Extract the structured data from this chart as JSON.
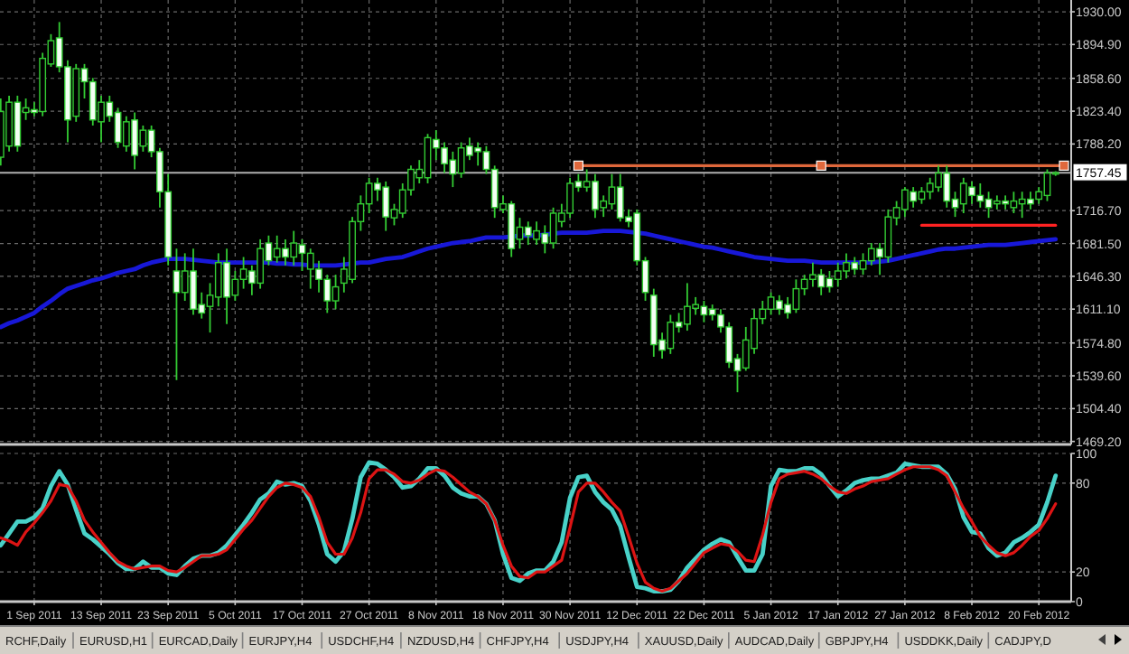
{
  "chart_data": [
    {
      "type": "candlestick",
      "color": "#33cc33",
      "categories": [
        null,
        null,
        null,
        null,
        null,
        null,
        null,
        null,
        null,
        null,
        null,
        null,
        null,
        null,
        null,
        null,
        null,
        null,
        null,
        null,
        null,
        null,
        null,
        null,
        null,
        null,
        null,
        null,
        null,
        null,
        null,
        null,
        null,
        null,
        null,
        null,
        null,
        null,
        null,
        null,
        null,
        null,
        null,
        null,
        null,
        null,
        null,
        null,
        null,
        null,
        null,
        null,
        null,
        null,
        null,
        null,
        null,
        null,
        null,
        null,
        null,
        null,
        null,
        null,
        null,
        null,
        null,
        null,
        null,
        null,
        null,
        null,
        null,
        null,
        null,
        null,
        null,
        null,
        null,
        null,
        null,
        null,
        null,
        null,
        null,
        null,
        null,
        null,
        null,
        null,
        null,
        null,
        null,
        null,
        null,
        null,
        null,
        null,
        null,
        null,
        null,
        null,
        null,
        null,
        null,
        null,
        null,
        null,
        null,
        null,
        null,
        null,
        null,
        null,
        null,
        null,
        null,
        null,
        null,
        null,
        null,
        null,
        null,
        null,
        null,
        null,
        null,
        null
      ],
      "ohlc": [
        [
          1774,
          1837,
          1765,
          1823
        ],
        [
          1786,
          1840,
          1780,
          1833
        ],
        [
          1833,
          1840,
          1780,
          1786
        ],
        [
          1822,
          1837,
          1814,
          1827
        ],
        [
          1825,
          1833,
          1818,
          1822
        ],
        [
          1823,
          1886,
          1818,
          1880
        ],
        [
          1874,
          1906,
          1871,
          1899
        ],
        [
          1902,
          1919,
          1865,
          1871
        ],
        [
          1871,
          1878,
          1790,
          1814
        ],
        [
          1818,
          1874,
          1812,
          1869
        ],
        [
          1869,
          1874,
          1837,
          1855
        ],
        [
          1855,
          1859,
          1808,
          1814
        ],
        [
          1812,
          1840,
          1790,
          1833
        ],
        [
          1833,
          1840,
          1812,
          1818
        ],
        [
          1822,
          1827,
          1784,
          1790
        ],
        [
          1786,
          1818,
          1780,
          1812
        ],
        [
          1814,
          1822,
          1761,
          1776
        ],
        [
          1786,
          1808,
          1780,
          1803
        ],
        [
          1803,
          1808,
          1774,
          1780
        ],
        [
          1780,
          1784,
          1720,
          1737
        ],
        [
          1737,
          1756,
          1658,
          1667
        ],
        [
          1652,
          1676,
          1535,
          1629
        ],
        [
          1629,
          1671,
          1620,
          1652
        ],
        [
          1652,
          1676,
          1605,
          1611
        ],
        [
          1616,
          1629,
          1601,
          1607
        ],
        [
          1614,
          1639,
          1586,
          1626
        ],
        [
          1624,
          1671,
          1614,
          1661
        ],
        [
          1661,
          1676,
          1595,
          1624
        ],
        [
          1626,
          1652,
          1620,
          1643
        ],
        [
          1643,
          1667,
          1633,
          1654
        ],
        [
          1652,
          1658,
          1626,
          1639
        ],
        [
          1639,
          1686,
          1633,
          1676
        ],
        [
          1682,
          1690,
          1658,
          1663
        ],
        [
          1667,
          1690,
          1661,
          1676
        ],
        [
          1676,
          1686,
          1658,
          1667
        ],
        [
          1667,
          1695,
          1658,
          1682
        ],
        [
          1680,
          1686,
          1652,
          1671
        ],
        [
          1654,
          1676,
          1633,
          1671
        ],
        [
          1654,
          1663,
          1629,
          1643
        ],
        [
          1643,
          1648,
          1607,
          1620
        ],
        [
          1620,
          1648,
          1611,
          1635
        ],
        [
          1639,
          1667,
          1629,
          1654
        ],
        [
          1643,
          1710,
          1639,
          1705
        ],
        [
          1705,
          1733,
          1695,
          1724
        ],
        [
          1724,
          1752,
          1714,
          1746
        ],
        [
          1746,
          1752,
          1727,
          1739
        ],
        [
          1742,
          1748,
          1695,
          1710
        ],
        [
          1709,
          1724,
          1701,
          1718
        ],
        [
          1714,
          1746,
          1709,
          1739
        ],
        [
          1739,
          1765,
          1733,
          1761
        ],
        [
          1752,
          1771,
          1746,
          1761
        ],
        [
          1752,
          1799,
          1746,
          1795
        ],
        [
          1793,
          1803,
          1771,
          1784
        ],
        [
          1784,
          1790,
          1757,
          1767
        ],
        [
          1771,
          1780,
          1742,
          1756
        ],
        [
          1757,
          1790,
          1752,
          1784
        ],
        [
          1786,
          1795,
          1771,
          1776
        ],
        [
          1784,
          1790,
          1765,
          1780
        ],
        [
          1780,
          1786,
          1756,
          1761
        ],
        [
          1761,
          1765,
          1709,
          1720
        ],
        [
          1718,
          1733,
          1714,
          1724
        ],
        [
          1724,
          1727,
          1667,
          1676
        ],
        [
          1686,
          1709,
          1676,
          1699
        ],
        [
          1699,
          1705,
          1680,
          1690
        ],
        [
          1686,
          1705,
          1680,
          1695
        ],
        [
          1692,
          1701,
          1671,
          1682
        ],
        [
          1682,
          1720,
          1676,
          1714
        ],
        [
          1705,
          1724,
          1699,
          1714
        ],
        [
          1714,
          1752,
          1709,
          1746
        ],
        [
          1748,
          1756,
          1737,
          1742
        ],
        [
          1742,
          1761,
          1737,
          1748
        ],
        [
          1748,
          1756,
          1709,
          1718
        ],
        [
          1720,
          1733,
          1710,
          1727
        ],
        [
          1724,
          1756,
          1718,
          1742
        ],
        [
          1742,
          1756,
          1705,
          1709
        ],
        [
          1710,
          1718,
          1699,
          1705
        ],
        [
          1714,
          1718,
          1658,
          1663
        ],
        [
          1663,
          1667,
          1620,
          1629
        ],
        [
          1626,
          1633,
          1560,
          1573
        ],
        [
          1578,
          1586,
          1558,
          1567
        ],
        [
          1569,
          1605,
          1563,
          1597
        ],
        [
          1597,
          1607,
          1586,
          1592
        ],
        [
          1595,
          1639,
          1588,
          1614
        ],
        [
          1612,
          1624,
          1605,
          1616
        ],
        [
          1614,
          1620,
          1597,
          1605
        ],
        [
          1611,
          1616,
          1599,
          1605
        ],
        [
          1605,
          1611,
          1586,
          1592
        ],
        [
          1592,
          1597,
          1548,
          1554
        ],
        [
          1558,
          1563,
          1522,
          1545
        ],
        [
          1548,
          1592,
          1545,
          1578
        ],
        [
          1569,
          1611,
          1563,
          1601
        ],
        [
          1601,
          1620,
          1595,
          1611
        ],
        [
          1611,
          1629,
          1605,
          1624
        ],
        [
          1620,
          1626,
          1605,
          1611
        ],
        [
          1616,
          1624,
          1601,
          1607
        ],
        [
          1611,
          1643,
          1607,
          1633
        ],
        [
          1633,
          1648,
          1626,
          1643
        ],
        [
          1643,
          1661,
          1635,
          1648
        ],
        [
          1648,
          1654,
          1626,
          1635
        ],
        [
          1644,
          1652,
          1629,
          1635
        ],
        [
          1643,
          1661,
          1635,
          1652
        ],
        [
          1652,
          1671,
          1644,
          1661
        ],
        [
          1661,
          1667,
          1648,
          1654
        ],
        [
          1654,
          1671,
          1648,
          1663
        ],
        [
          1663,
          1682,
          1658,
          1676
        ],
        [
          1676,
          1682,
          1648,
          1667
        ],
        [
          1667,
          1718,
          1661,
          1710
        ],
        [
          1709,
          1727,
          1701,
          1720
        ],
        [
          1718,
          1742,
          1710,
          1739
        ],
        [
          1737,
          1742,
          1720,
          1727
        ],
        [
          1729,
          1742,
          1724,
          1737
        ],
        [
          1737,
          1752,
          1729,
          1746
        ],
        [
          1742,
          1765,
          1737,
          1757
        ],
        [
          1757,
          1765,
          1720,
          1727
        ],
        [
          1729,
          1737,
          1710,
          1720
        ],
        [
          1724,
          1752,
          1714,
          1746
        ],
        [
          1742,
          1748,
          1724,
          1733
        ],
        [
          1733,
          1746,
          1720,
          1727
        ],
        [
          1729,
          1737,
          1709,
          1720
        ],
        [
          1724,
          1733,
          1718,
          1727
        ],
        [
          1727,
          1733,
          1718,
          1724
        ],
        [
          1720,
          1737,
          1714,
          1727
        ],
        [
          1724,
          1737,
          1709,
          1729
        ],
        [
          1729,
          1737,
          1718,
          1724
        ],
        [
          1729,
          1742,
          1724,
          1737
        ],
        [
          1733,
          1761,
          1727,
          1757
        ],
        [
          1756,
          1759,
          1754,
          1757.45
        ],
        null
      ],
      "series": [
        {
          "type": "line",
          "color": "#1818d8",
          "values": [
            1592,
            1596,
            1599,
            1603,
            1607,
            1614,
            1620,
            1627,
            1633,
            1636,
            1639,
            1642,
            1644,
            1647,
            1650,
            1652,
            1654,
            1658,
            1661,
            1663,
            1665,
            1665,
            1665,
            1664,
            1663,
            1662,
            1661,
            1661,
            1661,
            1661,
            1661,
            1661,
            1661,
            1660,
            1660,
            1659,
            1659,
            1658,
            1658,
            1658,
            1658,
            1659,
            1660,
            1661,
            1661,
            1663,
            1665,
            1666,
            1667,
            1670,
            1673,
            1676,
            1678,
            1680,
            1682,
            1683,
            1684,
            1686,
            1688,
            1688,
            1688,
            1689,
            1690,
            1690,
            1690,
            1691,
            1692,
            1693,
            1693,
            1693,
            1693,
            1694,
            1695,
            1695,
            1695,
            1694,
            1693,
            1692,
            1690,
            1688,
            1686,
            1684,
            1682,
            1680,
            1678,
            1677,
            1675,
            1673,
            1671,
            1669,
            1667,
            1666,
            1665,
            1664,
            1663,
            1663,
            1663,
            1662,
            1661,
            1661,
            1661,
            1661,
            1661,
            1661,
            1661,
            1662,
            1663,
            1665,
            1667,
            1669,
            1671,
            1673,
            1675,
            1676,
            1676,
            1677,
            1678,
            1679,
            1680,
            1680,
            1680,
            1681,
            1682,
            1683,
            1684,
            1685,
            1686,
            null
          ]
        },
        {
          "type": "line",
          "color": "#e0683c",
          "marker": "square",
          "values": [
            null,
            null,
            null,
            null,
            null,
            null,
            null,
            null,
            null,
            null,
            null,
            null,
            null,
            null,
            null,
            null,
            null,
            null,
            null,
            null,
            null,
            null,
            null,
            null,
            null,
            null,
            null,
            null,
            null,
            null,
            null,
            null,
            null,
            null,
            null,
            null,
            null,
            null,
            null,
            null,
            null,
            null,
            null,
            null,
            null,
            null,
            null,
            null,
            null,
            null,
            null,
            null,
            null,
            null,
            null,
            null,
            null,
            null,
            null,
            null,
            null,
            null,
            null,
            null,
            null,
            null,
            null,
            null,
            null,
            1765,
            null,
            null,
            null,
            null,
            null,
            null,
            null,
            null,
            null,
            null,
            null,
            null,
            null,
            null,
            null,
            null,
            null,
            null,
            null,
            null,
            null,
            null,
            null,
            null,
            null,
            null,
            null,
            null,
            1765,
            null,
            null,
            null,
            null,
            null,
            null,
            null,
            null,
            null,
            null,
            null,
            null,
            null,
            null,
            null,
            null,
            null,
            null,
            null,
            null,
            null,
            null,
            null,
            null,
            null,
            null,
            null,
            null,
            1765
          ]
        },
        {
          "type": "line",
          "color": "#ff2222",
          "values": [
            null,
            null,
            null,
            null,
            null,
            null,
            null,
            null,
            null,
            null,
            null,
            null,
            null,
            null,
            null,
            null,
            null,
            null,
            null,
            null,
            null,
            null,
            null,
            null,
            null,
            null,
            null,
            null,
            null,
            null,
            null,
            null,
            null,
            null,
            null,
            null,
            null,
            null,
            null,
            null,
            null,
            null,
            null,
            null,
            null,
            null,
            null,
            null,
            null,
            null,
            null,
            null,
            null,
            null,
            null,
            null,
            null,
            null,
            null,
            null,
            null,
            null,
            null,
            null,
            null,
            null,
            null,
            null,
            null,
            null,
            null,
            null,
            null,
            null,
            null,
            null,
            null,
            null,
            null,
            null,
            null,
            null,
            null,
            null,
            null,
            null,
            null,
            null,
            null,
            null,
            null,
            null,
            null,
            null,
            null,
            null,
            null,
            null,
            null,
            null,
            null,
            null,
            null,
            null,
            null,
            null,
            null,
            null,
            null,
            null,
            1701,
            null,
            null,
            null,
            null,
            null,
            null,
            null,
            null,
            null,
            null,
            null,
            null,
            null,
            null,
            null,
            1701,
            null
          ]
        }
      ],
      "ylim": [
        1466,
        1931
      ],
      "yticks": [
        {
          "value": 1930,
          "label": "1930.00"
        },
        {
          "value": 1894.9,
          "label": "1894.90"
        },
        {
          "value": 1858.6,
          "label": "1858.60"
        },
        {
          "value": 1823.4,
          "label": "1823.40"
        },
        {
          "value": 1788.2,
          "label": "1788.20"
        },
        {
          "value": 1716.7,
          "label": "1716.70"
        },
        {
          "value": 1681.5,
          "label": "1681.50"
        },
        {
          "value": 1646.3,
          "label": "1646.30"
        },
        {
          "value": 1611.1,
          "label": "1611.10"
        },
        {
          "value": 1574.8,
          "label": "1574.80"
        },
        {
          "value": 1539.6,
          "label": "1539.60"
        },
        {
          "value": 1504.4,
          "label": "1504.40"
        },
        {
          "value": 1469.2,
          "label": "1469.20"
        }
      ],
      "grid": true,
      "tick_labels": "y",
      "ref_lines": [
        {
          "axis": "y",
          "value": 1757.45,
          "label": "1757.45",
          "color": "#b0b0b0"
        }
      ],
      "annotations": [
        "RCHF,Daily",
        "EURUSD,H1",
        "EURCAD,Daily",
        "EURJPY,H4",
        "USDCHF,H4",
        "NZDUSD,H4",
        "CHFJPY,H4",
        "USDJPY,H4",
        "XAUUSD,Daily",
        "AUDCAD,Daily",
        "GBPJPY,H4",
        "USDDKK,Daily",
        "CADJPY,D"
      ]
    },
    {
      "type": "line",
      "categories": [
        null,
        null,
        null,
        null,
        "1 Sep 2011",
        null,
        null,
        null,
        null,
        null,
        null,
        null,
        "13 Sep 2011",
        null,
        null,
        null,
        null,
        null,
        null,
        null,
        "23 Sep 2011",
        null,
        null,
        null,
        null,
        null,
        null,
        null,
        "5 Oct 2011",
        null,
        null,
        null,
        null,
        null,
        null,
        null,
        "17 Oct 2011",
        null,
        null,
        null,
        null,
        null,
        null,
        null,
        "27 Oct 2011",
        null,
        null,
        null,
        null,
        null,
        null,
        null,
        "8 Nov 2011",
        null,
        null,
        null,
        null,
        null,
        null,
        null,
        "18 Nov 2011",
        null,
        null,
        null,
        null,
        null,
        null,
        null,
        "30 Nov 2011",
        null,
        null,
        null,
        null,
        null,
        null,
        null,
        "12 Dec 2011",
        null,
        null,
        null,
        null,
        null,
        null,
        null,
        "22 Dec 2011",
        null,
        null,
        null,
        null,
        null,
        null,
        null,
        "5 Jan 2012",
        null,
        null,
        null,
        null,
        null,
        null,
        null,
        "17 Jan 2012",
        null,
        null,
        null,
        null,
        null,
        null,
        null,
        "27 Jan 2012",
        null,
        null,
        null,
        null,
        null,
        null,
        null,
        "8 Feb 2012",
        null,
        null,
        null,
        null,
        null,
        null,
        null,
        "20 Feb 2012",
        null,
        null,
        null
      ],
      "series": [
        {
          "color": "#48d1c8",
          "values": [
            38,
            46,
            54,
            54,
            57,
            63,
            78,
            88,
            79,
            62,
            46,
            42,
            37,
            32,
            26,
            22,
            22,
            27,
            23,
            23,
            19,
            18,
            24,
            29,
            31,
            31,
            33,
            38,
            45,
            52,
            60,
            69,
            73,
            81,
            79,
            80,
            78,
            68,
            52,
            32,
            27,
            34,
            56,
            84,
            94,
            93,
            89,
            84,
            77,
            78,
            83,
            90,
            90,
            85,
            77,
            73,
            71,
            71,
            66,
            55,
            32,
            16,
            14,
            19,
            21,
            21,
            27,
            40,
            70,
            84,
            85,
            74,
            67,
            62,
            51,
            30,
            10,
            9,
            7,
            7,
            8,
            14,
            23,
            29,
            35,
            39,
            42,
            40,
            30,
            21,
            21,
            32,
            78,
            89,
            88,
            88,
            90,
            90,
            86,
            78,
            71,
            75,
            80,
            82,
            83,
            83,
            85,
            87,
            93,
            92,
            91,
            91,
            91,
            86,
            76,
            57,
            47,
            46,
            36,
            31,
            33,
            40,
            43,
            47,
            52,
            67,
            85,
            null
          ]
        },
        {
          "color": "#dd1414",
          "values": [
            43,
            41,
            38,
            47,
            53,
            60,
            68,
            79,
            78,
            68,
            55,
            47,
            40,
            33,
            27,
            24,
            22,
            23,
            24,
            24,
            21,
            20,
            23,
            27,
            31,
            31,
            32,
            35,
            42,
            49,
            55,
            63,
            71,
            77,
            80,
            79,
            77,
            71,
            57,
            40,
            32,
            32,
            43,
            60,
            83,
            89,
            89,
            86,
            81,
            80,
            82,
            86,
            89,
            88,
            84,
            79,
            74,
            71,
            66,
            55,
            38,
            24,
            17,
            16,
            20,
            20,
            24,
            28,
            50,
            74,
            80,
            80,
            74,
            67,
            61,
            44,
            26,
            13,
            9,
            7,
            9,
            14,
            19,
            26,
            33,
            36,
            39,
            38,
            34,
            28,
            27,
            45,
            67,
            83,
            86,
            87,
            88,
            86,
            83,
            78,
            74,
            73,
            76,
            78,
            81,
            82,
            83,
            86,
            89,
            91,
            91,
            91,
            89,
            85,
            74,
            63,
            54,
            44,
            38,
            33,
            31,
            33,
            38,
            44,
            48,
            56,
            66,
            null
          ]
        }
      ],
      "ylim": [
        0,
        100
      ],
      "yticks": [
        0,
        20,
        80,
        100
      ],
      "grid": true
    }
  ]
}
